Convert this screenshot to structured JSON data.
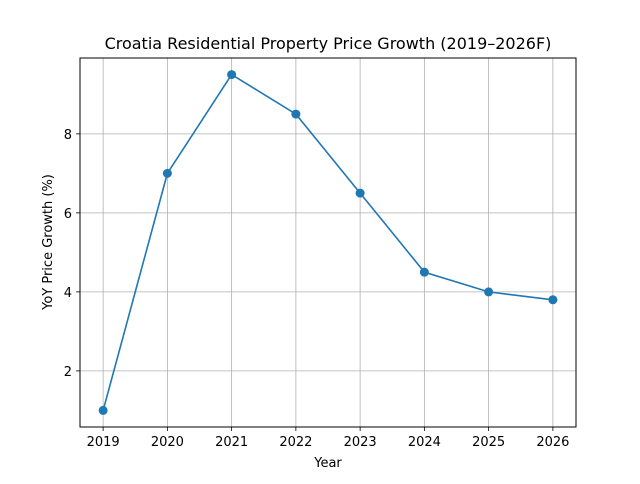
{
  "chart_data": {
    "type": "line",
    "title": "Croatia Residential Property Price Growth (2019–2026F)",
    "xlabel": "Year",
    "ylabel": "YoY Price Growth (%)",
    "x": [
      2019,
      2020,
      2021,
      2022,
      2023,
      2024,
      2025,
      2026
    ],
    "x_tick_labels": [
      "2019",
      "2020",
      "2021",
      "2022",
      "2023",
      "2024",
      "2025",
      "2026"
    ],
    "y_ticks": [
      2,
      4,
      6,
      8
    ],
    "y_tick_labels": [
      "2",
      "4",
      "6",
      "8"
    ],
    "series": [
      {
        "values": [
          1.0,
          7.0,
          9.5,
          8.5,
          6.5,
          4.5,
          4.0,
          3.8
        ],
        "color": "#1f77b4",
        "marker": "circle"
      }
    ],
    "xlim": [
      2018.64,
      2026.36
    ],
    "ylim": [
      0.58,
      9.92
    ],
    "grid": true
  }
}
